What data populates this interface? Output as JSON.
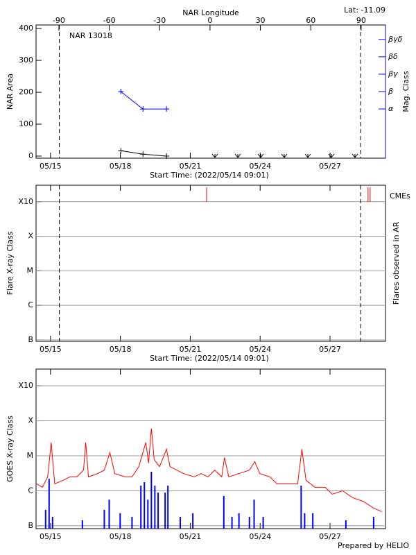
{
  "credit": "Prepared by HELIO",
  "chart_data": [
    {
      "type": "line",
      "title": "NAR 13018",
      "subtitle": "Lat: -11.09",
      "xlabel": "Start Time: (2022/05/14 09:01)",
      "x2label": "NAR Longitude",
      "ylabel": "NAR Area",
      "y2label": "Mag. Class",
      "xlim": [
        0,
        15
      ],
      "xticks": [
        {
          "value": 0.62,
          "label": "05/15"
        },
        {
          "value": 3.62,
          "label": "05/18"
        },
        {
          "value": 6.62,
          "label": "05/21"
        },
        {
          "value": 9.62,
          "label": "05/24"
        },
        {
          "value": 12.62,
          "label": "05/27"
        }
      ],
      "x2lim": [
        -103.6,
        104.5
      ],
      "x2ticks": [
        -90,
        -60,
        -30,
        0,
        30,
        60,
        90
      ],
      "ylim": [
        -6.5,
        411
      ],
      "yticks": [
        0,
        100,
        200,
        300,
        400
      ],
      "y2lim": [
        -1.83,
        5.83
      ],
      "y2ticks": [
        {
          "value": 1,
          "label": "α"
        },
        {
          "value": 2,
          "label": "β"
        },
        {
          "value": 3,
          "label": "βγ"
        },
        {
          "value": 4,
          "label": "βδ"
        },
        {
          "value": 5,
          "label": "βγδ"
        }
      ],
      "vlines": [
        1.0,
        13.93
      ],
      "series": [
        {
          "color": "#000000",
          "marker": "plus",
          "x": [
            3.64,
            4.59,
            5.6
          ],
          "values": [
            17,
            6,
            0
          ]
        },
        {
          "color": "#0000ff",
          "marker": "plus",
          "axis": "y2",
          "x": [
            3.64,
            4.59,
            5.6
          ],
          "values": [
            2,
            1,
            1
          ]
        }
      ]
    },
    {
      "type": "event",
      "xlabel": "Start Time: (2022/05/14 09:01)",
      "ylabel": "Flare X-ray Class",
      "y2label": "Flares observed in AR",
      "xlim": [
        0,
        15
      ],
      "xticks": [
        {
          "value": 0.62,
          "label": "05/15"
        },
        {
          "value": 3.62,
          "label": "05/18"
        },
        {
          "value": 6.62,
          "label": "05/21"
        },
        {
          "value": 9.62,
          "label": "05/24"
        },
        {
          "value": 12.62,
          "label": "05/27"
        }
      ],
      "ylim": [
        9.1e-08,
        0.003
      ],
      "log_scale": true,
      "grid": true,
      "yticks": [
        {
          "value": 1e-07,
          "label": "B"
        },
        {
          "value": 1e-06,
          "label": "C"
        },
        {
          "value": 1e-05,
          "label": "M"
        },
        {
          "value": 0.0001,
          "label": "X"
        },
        {
          "value": 0.001,
          "label": "X10"
        }
      ],
      "vlines": [
        1.0,
        13.93
      ],
      "series": [
        {
          "name": "CMEs",
          "color": "#ff0000",
          "x": [
            7.32,
            14.25,
            14.34
          ]
        }
      ]
    },
    {
      "type": "line",
      "ylabel": "GOES X-ray Class",
      "xlim": [
        0,
        15
      ],
      "xticks": [
        {
          "value": 0.62,
          "label": "05/15"
        },
        {
          "value": 3.62,
          "label": "05/18"
        },
        {
          "value": 6.62,
          "label": "05/21"
        },
        {
          "value": 9.62,
          "label": "05/24"
        },
        {
          "value": 12.62,
          "label": "05/27"
        }
      ],
      "ylim": [
        8.3e-08,
        0.003
      ],
      "log_scale": true,
      "grid": true,
      "yticks": [
        {
          "value": 1e-07,
          "label": "B"
        },
        {
          "value": 1e-06,
          "label": "C"
        },
        {
          "value": 1e-05,
          "label": "M"
        },
        {
          "value": 0.0001,
          "label": "X"
        },
        {
          "value": 0.001,
          "label": "X10"
        }
      ],
      "series": [
        {
          "color": "#ff0000",
          "x": [
            0.03,
            0.27,
            0.5,
            0.65,
            0.8,
            1.16,
            1.45,
            1.75,
            2.04,
            2.13,
            2.25,
            2.64,
            2.93,
            3.17,
            3.38,
            3.82,
            4.12,
            4.41,
            4.71,
            4.83,
            4.95,
            5.07,
            5.3,
            5.6,
            5.75,
            6.04,
            6.34,
            6.79,
            7.08,
            7.38,
            7.67,
            7.97,
            8.09,
            8.27,
            8.71,
            9.16,
            9.39,
            9.6,
            10.04,
            10.34,
            10.79,
            11.23,
            11.41,
            11.59,
            11.97,
            12.41,
            12.71,
            13.16,
            13.6,
            14.04,
            14.49,
            14.84
          ],
          "values": [
            1.58e-06,
            1.26e-06,
            2.5e-06,
            2.4e-05,
            1.58e-06,
            2e-06,
            2.5e-06,
            2.5e-06,
            3.9e-06,
            2.4e-05,
            2.5e-06,
            3.1e-06,
            3.9e-06,
            1.23e-05,
            3.1e-06,
            2.5e-06,
            2.5e-06,
            4.9e-06,
            2.4e-05,
            6.2e-06,
            6e-05,
            7.8e-06,
            4.9e-06,
            1.54e-05,
            4.9e-06,
            3.9e-06,
            3.1e-06,
            2.5e-06,
            3.1e-06,
            2.5e-06,
            3.9e-06,
            2.5e-06,
            8.9e-06,
            2.5e-06,
            3.1e-06,
            3.9e-06,
            6.8e-06,
            3.1e-06,
            2.5e-06,
            1.58e-06,
            1.58e-06,
            1.58e-06,
            1.54e-05,
            2e-06,
            1.26e-06,
            1.26e-06,
            8e-07,
            1e-06,
            6.3e-07,
            5e-07,
            3.2e-07,
            2.55e-07
          ]
        },
        {
          "color": "#0000ff",
          "style": "impulse",
          "x": [
            0.41,
            0.56,
            0.71,
            1.99,
            2.93,
            3.14,
            3.61,
            4.12,
            4.5,
            4.65,
            4.8,
            4.95,
            5.1,
            5.24,
            5.54,
            5.66,
            6.19,
            6.73,
            8.06,
            8.41,
            8.71,
            9.16,
            9.36,
            9.75,
            11.38,
            11.53,
            11.88,
            13.3,
            14.49
          ],
          "values": [
            2.85e-07,
            2.2e-06,
            1.8e-07,
            1.44e-07,
            2.85e-07,
            5.6e-07,
            2.3e-07,
            1.8e-07,
            1.4e-06,
            1.77e-06,
            5.6e-07,
            3.5e-06,
            1.4e-06,
            8.9e-07,
            8.9e-07,
            1.4e-06,
            1.8e-07,
            2.3e-07,
            7.1e-07,
            1.8e-07,
            2.3e-07,
            1.8e-07,
            5.6e-07,
            1.8e-07,
            1.4e-06,
            2.3e-07,
            2.3e-07,
            1.44e-07,
            1.8e-07
          ]
        }
      ]
    }
  ]
}
